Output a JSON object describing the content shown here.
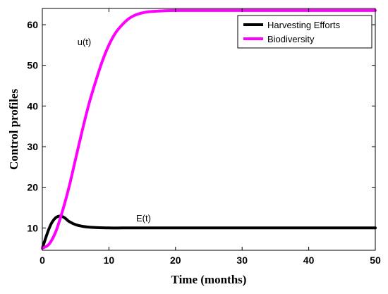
{
  "chart_data": {
    "type": "line",
    "xlabel": "Time (months)",
    "ylabel": "Control profiles",
    "xlim": [
      0,
      50
    ],
    "ylim": [
      4.5,
      64
    ],
    "xticks": [
      0,
      10,
      20,
      30,
      40,
      50
    ],
    "yticks": [
      10,
      20,
      30,
      40,
      50,
      60
    ],
    "grid": false,
    "legend_position": "top-right",
    "series": [
      {
        "name": "Harvesting  Efforts",
        "color": "#000000",
        "x": [
          0,
          0.5,
          1,
          1.5,
          2,
          2.5,
          3,
          3.5,
          4,
          5,
          6,
          7,
          8,
          10,
          12,
          15,
          20,
          30,
          40,
          50
        ],
        "y": [
          5,
          7.5,
          9.8,
          11.5,
          12.5,
          12.9,
          12.8,
          12.3,
          11.6,
          10.8,
          10.4,
          10.2,
          10.1,
          10.0,
          10.0,
          10.0,
          10.0,
          10.0,
          10.0,
          10.0
        ]
      },
      {
        "name": "Biodiversity",
        "color": "#ff00ff",
        "x": [
          0,
          1,
          2,
          3,
          4,
          5,
          6,
          7,
          8,
          9,
          10,
          11,
          12,
          13,
          14,
          15,
          16,
          18,
          20,
          25,
          30,
          40,
          50
        ],
        "y": [
          5,
          6,
          9,
          14,
          20,
          27,
          34,
          40.5,
          46,
          51,
          55,
          58,
          60,
          61.5,
          62.4,
          62.9,
          63.2,
          63.4,
          63.5,
          63.5,
          63.5,
          63.5,
          63.5
        ]
      }
    ],
    "annotations": [
      {
        "text": "u(t)",
        "x": 6.3,
        "y": 55
      },
      {
        "text": "E(t)",
        "x": 15.2,
        "y": 11.6
      }
    ]
  }
}
